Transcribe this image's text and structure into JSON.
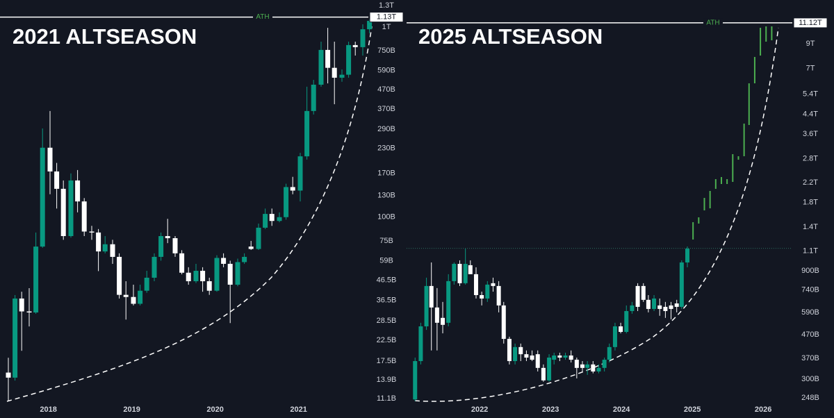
{
  "chart_data": [
    {
      "type": "candlestick",
      "title": "2021 ALTSEASON",
      "log_scale": true,
      "xlim": [
        2017.42,
        2021.92
      ],
      "xticks": [
        2018,
        2019,
        2020,
        2021
      ],
      "ylim": [
        10.55,
        1390
      ],
      "yticks": [
        {
          "value": 1300,
          "label": "1.3T"
        },
        {
          "value": 1000,
          "label": "1T"
        },
        {
          "value": 750,
          "label": "750B"
        },
        {
          "value": 590,
          "label": "590B"
        },
        {
          "value": 470,
          "label": "470B"
        },
        {
          "value": 370,
          "label": "370B"
        },
        {
          "value": 290,
          "label": "290B"
        },
        {
          "value": 230,
          "label": "230B"
        },
        {
          "value": 170,
          "label": "170B"
        },
        {
          "value": 130,
          "label": "130B"
        },
        {
          "value": 100,
          "label": "100B"
        },
        {
          "value": 75,
          "label": "75B"
        },
        {
          "value": 59,
          "label": "59B"
        },
        {
          "value": 46.5,
          "label": "46.5B"
        },
        {
          "value": 36.5,
          "label": "36.5B"
        },
        {
          "value": 28.5,
          "label": "28.5B"
        },
        {
          "value": 22.5,
          "label": "22.5B"
        },
        {
          "value": 17.5,
          "label": "17.5B"
        },
        {
          "value": 13.9,
          "label": "13.9B"
        },
        {
          "value": 11.1,
          "label": "11.1B"
        }
      ],
      "ath": {
        "label": "ATH",
        "value": 1130,
        "value_label": "1.13T",
        "color": "#4caf50"
      },
      "up_color": "#089981",
      "down_color": "#ffffff",
      "candles": {
        "x": [
          2017.52,
          2017.6,
          2017.68,
          2017.77,
          2017.85,
          2017.93,
          2018.02,
          2018.1,
          2018.18,
          2018.27,
          2018.35,
          2018.43,
          2018.52,
          2018.6,
          2018.68,
          2018.77,
          2018.85,
          2018.93,
          2019.02,
          2019.1,
          2019.18,
          2019.27,
          2019.35,
          2019.43,
          2019.52,
          2019.6,
          2019.68,
          2019.77,
          2019.85,
          2019.93,
          2020.02,
          2020.1,
          2020.18,
          2020.27,
          2020.35,
          2020.43,
          2020.52,
          2020.6,
          2020.68,
          2020.77,
          2020.85,
          2020.93,
          2021.02,
          2021.1,
          2021.18,
          2021.27,
          2021.35,
          2021.43,
          2021.52,
          2021.6,
          2021.68,
          2021.77,
          2021.85
        ],
        "open": [
          15.2,
          14.3,
          37.3,
          31.9,
          31.5,
          70,
          232,
          174,
          141,
          79.5,
          156,
          121,
          84,
          83,
          66,
          72,
          61.8,
          39,
          38,
          35,
          41,
          48,
          61.8,
          79.5,
          77.5,
          64.5,
          51,
          46,
          52.2,
          46,
          41,
          61,
          56.8,
          44.1,
          58,
          70,
          68,
          88,
          104,
          95.5,
          100,
          144,
          138,
          209,
          362,
          498,
          759,
          611,
          542,
          562,
          805,
          785,
          975
        ],
        "high": [
          18.2,
          38.9,
          40.5,
          42.3,
          83,
          293,
          362,
          193,
          156,
          170,
          177,
          126,
          90,
          86.6,
          79.5,
          76,
          64.5,
          46,
          44.1,
          44.1,
          52.2,
          64.5,
          83,
          98,
          79.5,
          67,
          54.5,
          56.8,
          54.5,
          48,
          63,
          64.5,
          59,
          60.5,
          64.5,
          75,
          92.5,
          111,
          111,
          106,
          150,
          163,
          218,
          486,
          528,
          839,
          992,
          839,
          599,
          839,
          839,
          1035,
          1100
        ],
        "low": [
          10.8,
          13.8,
          19.8,
          26.6,
          31,
          69,
          132,
          111,
          76,
          78,
          106,
          79.5,
          76,
          52,
          64.5,
          56.8,
          37.3,
          28.9,
          34.3,
          34.3,
          40,
          46,
          59,
          73,
          61.8,
          50,
          44.1,
          45,
          40.5,
          39,
          40.5,
          54.5,
          27.7,
          43.3,
          56.8,
          67.2,
          67.2,
          86.6,
          90,
          94,
          97,
          132,
          121,
          201,
          347,
          486,
          506,
          393,
          516,
          542,
          709,
          709,
          928
        ],
        "close": [
          14.3,
          37.3,
          31.9,
          31.5,
          70,
          232,
          174,
          141,
          79.5,
          156,
          121,
          84,
          83,
          66,
          72,
          61.8,
          39,
          38,
          35,
          41,
          48,
          61.8,
          79.5,
          77.5,
          64.5,
          51,
          46,
          52.2,
          46,
          41,
          61,
          56.8,
          44.1,
          58,
          61.8,
          68,
          88,
          104,
          95.5,
          100,
          144,
          138,
          209,
          362,
          498,
          759,
          611,
          542,
          562,
          805,
          785,
          975,
          1080
        ]
      }
    },
    {
      "type": "candlestick",
      "title": "2025 ALTSEASON",
      "log_scale": true,
      "xlim": [
        2020.97,
        2026.41
      ],
      "xticks": [
        2022,
        2023,
        2024,
        2025,
        2026
      ],
      "ylim": [
        236,
        14020
      ],
      "yticks": [
        {
          "value": 9000,
          "label": "9T"
        },
        {
          "value": 7000,
          "label": "7T"
        },
        {
          "value": 5400,
          "label": "5.4T"
        },
        {
          "value": 4400,
          "label": "4.4T"
        },
        {
          "value": 3600,
          "label": "3.6T"
        },
        {
          "value": 2800,
          "label": "2.8T"
        },
        {
          "value": 2200,
          "label": "2.2T"
        },
        {
          "value": 1800,
          "label": "1.8T"
        },
        {
          "value": 1400,
          "label": "1.4T"
        },
        {
          "value": 1100,
          "label": "1.1T"
        },
        {
          "value": 900,
          "label": "900B"
        },
        {
          "value": 740,
          "label": "740B"
        },
        {
          "value": 590,
          "label": "590B"
        },
        {
          "value": 470,
          "label": "470B"
        },
        {
          "value": 370,
          "label": "370B"
        },
        {
          "value": 300,
          "label": "300B"
        },
        {
          "value": 248,
          "label": "248B"
        }
      ],
      "ath": {
        "label": "ATH",
        "value": 11120,
        "value_label": "11.12T",
        "color": "#4caf50"
      },
      "reference_line": 1130,
      "up_color": "#089981",
      "down_color": "#ffffff",
      "projection_color": "#4caf50",
      "candles": {
        "x": [
          2021.09,
          2021.17,
          2021.25,
          2021.32,
          2021.4,
          2021.48,
          2021.56,
          2021.64,
          2021.72,
          2021.8,
          2021.87,
          2021.95,
          2022.03,
          2022.11,
          2022.19,
          2022.27,
          2022.34,
          2022.42,
          2022.5,
          2022.58,
          2022.66,
          2022.74,
          2022.82,
          2022.9,
          2022.98,
          2023.05,
          2023.13,
          2023.21,
          2023.29,
          2023.37,
          2023.45,
          2023.52,
          2023.6,
          2023.68,
          2023.76,
          2023.83,
          2023.91,
          2023.99,
          2024.07,
          2024.15,
          2024.23,
          2024.31,
          2024.38,
          2024.46,
          2024.54,
          2024.62,
          2024.7,
          2024.78,
          2024.85,
          2024.93
        ],
        "open": [
          244,
          360,
          512,
          771,
          620,
          558,
          531,
          810,
          965,
          793,
          952,
          869,
          703,
          679,
          793,
          771,
          633,
          451,
          360,
          415,
          386,
          381,
          386,
          336,
          296,
          365,
          381,
          373,
          381,
          365,
          348,
          336,
          348,
          324,
          336,
          365,
          415,
          512,
          484,
          598,
          771,
          771,
          670,
          611,
          633,
          624,
          633,
          646,
          624,
          979
        ],
        "high": [
          373,
          531,
          839,
          979,
          755,
          656,
          869,
          979,
          1000,
          1126,
          1000,
          932,
          728,
          810,
          839,
          810,
          656,
          461,
          430,
          430,
          401,
          401,
          401,
          348,
          386,
          392,
          392,
          392,
          401,
          373,
          360,
          360,
          360,
          348,
          373,
          430,
          531,
          531,
          633,
          656,
          793,
          793,
          703,
          703,
          679,
          656,
          656,
          670,
          1000,
          1151
        ],
        "low": [
          240,
          348,
          494,
          401,
          401,
          477,
          512,
          782,
          771,
          782,
          900,
          679,
          633,
          656,
          728,
          590,
          430,
          348,
          348,
          360,
          360,
          360,
          324,
          292,
          292,
          348,
          360,
          365,
          355,
          302,
          324,
          313,
          318,
          318,
          324,
          355,
          401,
          477,
          477,
          582,
          598,
          656,
          590,
          598,
          570,
          558,
          550,
          590,
          611,
          932
        ],
        "close": [
          360,
          512,
          771,
          620,
          531,
          520,
          810,
          965,
          793,
          965,
          869,
          703,
          679,
          782,
          771,
          633,
          451,
          360,
          415,
          386,
          373,
          365,
          336,
          296,
          373,
          381,
          373,
          381,
          365,
          336,
          336,
          348,
          324,
          336,
          365,
          415,
          512,
          484,
          598,
          633,
          624,
          670,
          611,
          679,
          611,
          598,
          611,
          624,
          979,
          1126
        ]
      },
      "projection": {
        "x": [
          2025.01,
          2025.09,
          2025.17,
          2025.25,
          2025.33,
          2025.41,
          2025.49,
          2025.57,
          2025.65,
          2025.73,
          2025.8,
          2025.88,
          2025.96,
          2026.04,
          2026.12
        ],
        "low": [
          1235,
          1452,
          1660,
          1695,
          2065,
          2169,
          2169,
          2216,
          2775,
          2875,
          3947,
          6022,
          7981,
          9188,
          9317
        ],
        "high": [
          1473,
          1547,
          1884,
          2022,
          2279,
          2328,
          2279,
          2936,
          2875,
          4002,
          6022,
          7869,
          10578,
          10726,
          10726
        ]
      }
    }
  ]
}
